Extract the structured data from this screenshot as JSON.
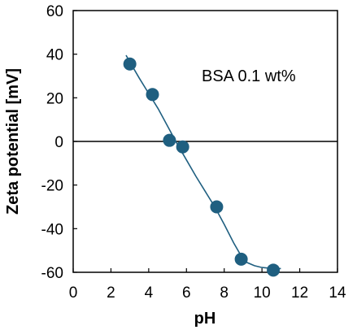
{
  "chart_data": {
    "type": "scatter",
    "xlabel": "pH",
    "ylabel": "Zeta potential [mV]",
    "xlim": [
      0,
      14
    ],
    "ylim": [
      -60,
      60
    ],
    "x_ticks": [
      0,
      2,
      4,
      6,
      8,
      10,
      12,
      14
    ],
    "y_ticks": [
      60,
      40,
      20,
      0,
      -20,
      -40,
      -60
    ],
    "x_tick_labels": [
      "0",
      "2",
      "4",
      "6",
      "8",
      "10",
      "12",
      "14"
    ],
    "y_tick_labels": [
      "60",
      "40",
      "20",
      "0",
      "-20",
      "-40",
      "-60"
    ],
    "annotation": "BSA 0.1 wt%",
    "grid": false,
    "zero_line": true,
    "series": [
      {
        "kind": "markers",
        "color": "#1f5f80",
        "x": [
          3.0,
          4.2,
          5.1,
          5.8,
          7.6,
          8.9,
          10.6
        ],
        "y": [
          35.5,
          21.5,
          0.5,
          -2.5,
          -30,
          -54,
          -59
        ]
      },
      {
        "kind": "fit-curve",
        "color": "#1f5f80",
        "x": [
          2.8,
          3.0,
          3.5,
          4.0,
          4.5,
          5.0,
          5.5,
          6.0,
          6.5,
          7.0,
          7.5,
          8.0,
          8.5,
          8.9,
          9.2,
          9.6,
          10.0,
          10.5,
          11.0
        ],
        "y": [
          39.5,
          36.5,
          29.0,
          22.0,
          15.0,
          7.0,
          -1.0,
          -8.5,
          -16.0,
          -23.0,
          -30.0,
          -38.0,
          -46.5,
          -52.5,
          -55.5,
          -57.0,
          -57.8,
          -58.2,
          -58.3
        ]
      }
    ]
  }
}
